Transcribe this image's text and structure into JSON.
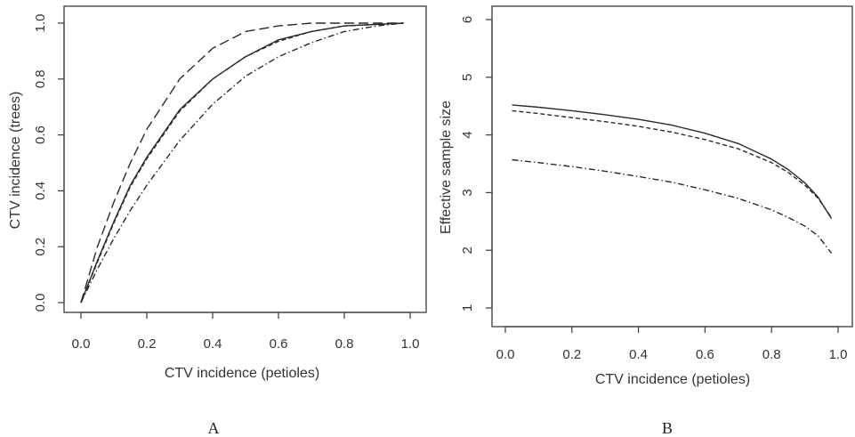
{
  "chart_data": [
    {
      "type": "line",
      "panel_label": "A",
      "xlabel": "CTV incidence (petioles)",
      "ylabel": "CTV incidence (trees)",
      "xlim": [
        0,
        1
      ],
      "ylim": [
        0,
        1
      ],
      "x_ticks": [
        "0.0",
        "0.2",
        "0.4",
        "0.6",
        "0.8",
        "1.0"
      ],
      "y_ticks": [
        "0.0",
        "0.2",
        "0.4",
        "0.6",
        "0.8",
        "1.0"
      ],
      "grid": false,
      "legend": "none",
      "series": [
        {
          "style": "long-dash",
          "x": [
            0,
            0.05,
            0.1,
            0.15,
            0.2,
            0.3,
            0.4,
            0.5,
            0.6,
            0.7,
            0.8,
            0.98
          ],
          "y": [
            0,
            0.2,
            0.36,
            0.5,
            0.62,
            0.8,
            0.91,
            0.97,
            0.99,
            1.0,
            1.0,
            1.0
          ]
        },
        {
          "style": "solid",
          "x": [
            0,
            0.05,
            0.1,
            0.15,
            0.2,
            0.3,
            0.4,
            0.5,
            0.6,
            0.7,
            0.8,
            0.98
          ],
          "y": [
            0,
            0.15,
            0.29,
            0.42,
            0.52,
            0.69,
            0.8,
            0.88,
            0.94,
            0.97,
            0.99,
            1.0
          ]
        },
        {
          "style": "short-dash",
          "x": [
            0,
            0.05,
            0.1,
            0.15,
            0.2,
            0.3,
            0.4,
            0.5,
            0.6,
            0.7,
            0.8,
            0.98
          ],
          "y": [
            0,
            0.145,
            0.285,
            0.415,
            0.515,
            0.685,
            0.8,
            0.88,
            0.935,
            0.97,
            0.99,
            1.0
          ]
        },
        {
          "style": "dash-dot",
          "x": [
            0,
            0.05,
            0.1,
            0.15,
            0.2,
            0.3,
            0.4,
            0.5,
            0.6,
            0.7,
            0.8,
            0.9,
            0.98
          ],
          "y": [
            0,
            0.12,
            0.23,
            0.33,
            0.42,
            0.58,
            0.71,
            0.81,
            0.88,
            0.93,
            0.97,
            0.99,
            1.0
          ]
        }
      ]
    },
    {
      "type": "line",
      "panel_label": "B",
      "xlabel": "CTV incidence (petioles)",
      "ylabel": "Effective sample size",
      "xlim": [
        0,
        1
      ],
      "ylim": [
        1,
        6
      ],
      "x_ticks": [
        "0.0",
        "0.2",
        "0.4",
        "0.6",
        "0.8",
        "1.0"
      ],
      "y_ticks": [
        "1",
        "2",
        "3",
        "4",
        "5",
        "6"
      ],
      "grid": false,
      "legend": "none",
      "series": [
        {
          "style": "solid",
          "x": [
            0.02,
            0.1,
            0.2,
            0.3,
            0.4,
            0.5,
            0.6,
            0.7,
            0.8,
            0.85,
            0.9,
            0.94,
            0.98
          ],
          "y": [
            4.52,
            4.48,
            4.42,
            4.35,
            4.27,
            4.17,
            4.03,
            3.85,
            3.58,
            3.4,
            3.17,
            2.92,
            2.55
          ]
        },
        {
          "style": "short-dash",
          "x": [
            0.02,
            0.1,
            0.2,
            0.3,
            0.4,
            0.5,
            0.6,
            0.7,
            0.8,
            0.85,
            0.9,
            0.94,
            0.98
          ],
          "y": [
            4.42,
            4.37,
            4.3,
            4.23,
            4.15,
            4.05,
            3.92,
            3.76,
            3.52,
            3.35,
            3.13,
            2.9,
            2.57
          ]
        },
        {
          "style": "dash-dot",
          "x": [
            0.02,
            0.1,
            0.2,
            0.3,
            0.4,
            0.5,
            0.6,
            0.7,
            0.8,
            0.85,
            0.9,
            0.94,
            0.98
          ],
          "y": [
            3.57,
            3.52,
            3.45,
            3.37,
            3.28,
            3.18,
            3.05,
            2.9,
            2.7,
            2.57,
            2.42,
            2.25,
            1.95
          ]
        }
      ]
    }
  ]
}
